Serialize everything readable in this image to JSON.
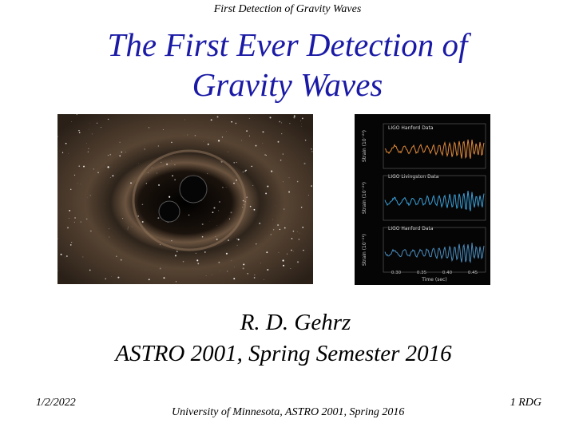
{
  "header": {
    "running_title": "First Detection of Gravity Waves"
  },
  "title": {
    "lines": [
      "The First Ever Detection of",
      "Gravity Waves"
    ]
  },
  "figure": {
    "panels": [
      "LIGO Hanford Data",
      "LIGO Livingston Data",
      "LIGO Hanford Data"
    ],
    "y_label": "Strain (10⁻²¹)",
    "x_label": "Time (sec)",
    "x_ticks": [
      "0.30",
      "0.35",
      "0.40",
      "0.45"
    ]
  },
  "byline": {
    "author": "R. D. Gehrz",
    "course": "ASTRO 2001, Spring Semester 2016"
  },
  "footer": {
    "date": "1/2/2022",
    "center": "University of Minnesota, ASTRO 2001, Spring 2016",
    "page": "1 RDG"
  }
}
